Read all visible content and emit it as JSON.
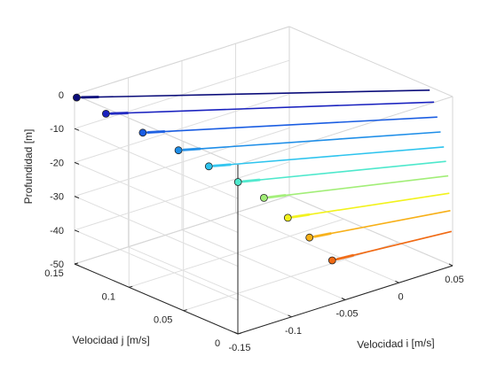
{
  "chart_data": {
    "type": "line3d",
    "title": "",
    "xlabel": "Velocidad i [m/s]",
    "ylabel": "Velocidad j [m/s]",
    "zlabel": "Profundidad [m]",
    "xlim": [
      -0.15,
      0.05
    ],
    "ylim": [
      0,
      0.15
    ],
    "zlim": [
      -50,
      0
    ],
    "xticks": [
      "-0.15",
      "-0.1",
      "-0.05",
      "0",
      "0.05"
    ],
    "yticks": [
      "0",
      "0.05",
      "0.1",
      "0.15"
    ],
    "zticks": [
      "-50",
      "-40",
      "-30",
      "-20",
      "-10",
      "0"
    ],
    "grid": true,
    "box": true,
    "series": [
      {
        "color": "#0b0d7a",
        "depth": -1,
        "start": {
          "vi": -0.148,
          "vj": 0.15
        },
        "end": {
          "vi": 0.05,
          "vj": 0.021
        }
      },
      {
        "color": "#1a22bf",
        "depth": -4,
        "start": {
          "vi": -0.14,
          "vj": 0.131
        },
        "end": {
          "vi": 0.05,
          "vj": 0.017
        }
      },
      {
        "color": "#1a5de2",
        "depth": -8,
        "start": {
          "vi": -0.127,
          "vj": 0.11
        },
        "end": {
          "vi": 0.05,
          "vj": 0.014
        }
      },
      {
        "color": "#1e8ee8",
        "depth": -12,
        "start": {
          "vi": -0.113,
          "vj": 0.091
        },
        "end": {
          "vi": 0.05,
          "vj": 0.011
        }
      },
      {
        "color": "#2ec4ee",
        "depth": -16,
        "start": {
          "vi": -0.1,
          "vj": 0.076
        },
        "end": {
          "vi": 0.05,
          "vj": 0.008
        }
      },
      {
        "color": "#4ee8cc",
        "depth": -20,
        "start": {
          "vi": -0.087,
          "vj": 0.062
        },
        "end": {
          "vi": 0.05,
          "vj": 0.006
        }
      },
      {
        "color": "#a2ee78",
        "depth": -24,
        "start": {
          "vi": -0.076,
          "vj": 0.049
        },
        "end": {
          "vi": 0.05,
          "vj": 0.004
        }
      },
      {
        "color": "#f2f21c",
        "depth": -29,
        "start": {
          "vi": -0.067,
          "vj": 0.036
        },
        "end": {
          "vi": 0.05,
          "vj": 0.003
        }
      },
      {
        "color": "#f7b018",
        "depth": -34,
        "start": {
          "vi": -0.059,
          "vj": 0.024
        },
        "end": {
          "vi": 0.05,
          "vj": 0.002
        }
      },
      {
        "color": "#f06a14",
        "depth": -40,
        "start": {
          "vi": -0.05,
          "vj": 0.012
        },
        "end": {
          "vi": 0.05,
          "vj": 0.001
        }
      }
    ]
  }
}
